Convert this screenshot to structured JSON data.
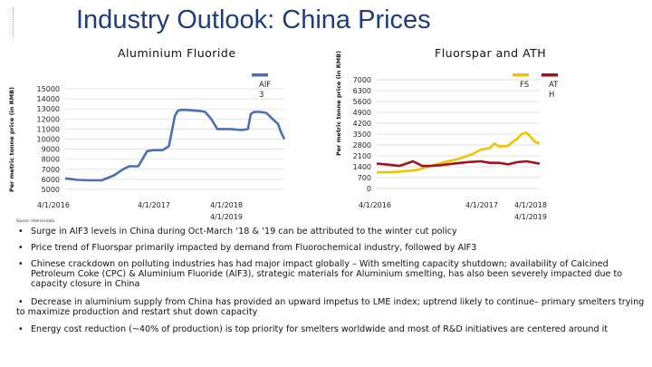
{
  "page": {
    "title": "Industry Outlook: China Prices",
    "source": "Source: Internal data"
  },
  "bullets": [
    "Surge in AlF3 levels in China during Oct-March ‘18 & ‘19 can be attributed to the winter cut policy",
    "Price trend of Fluorspar primarily impacted by demand from Fluorochemical industry, followed by AlF3",
    "Chinese crackdown on polluting industries has had major impact globally – With smelting capacity shutdown; availability of Calcined Petroleum Coke (CPC) & Aluminium Fluoride (AlF3), strategic materials for Aluminium smelting, has also been severely impacted due to capacity closure in China",
    "Decrease in aluminium supply from China has provided an upward impetus to LME index; uptrend likely to continue– primary smelters trying to maximize production and restart shut down capacity",
    "Energy cost reduction (~40% of production) is top priority for smelters worldwide and most of R&D initiatives are centered around it"
  ],
  "chart_data": [
    {
      "type": "line",
      "title": "Aluminium Fluoride",
      "ylabel": "Per metric tonne price (in RMB)",
      "xlabel": "",
      "ylim": [
        5000,
        15000
      ],
      "yticks": [
        5000,
        6000,
        7000,
        8000,
        9000,
        10000,
        11000,
        12000,
        13000,
        14000,
        15000
      ],
      "xticks": [
        "4/1/2016",
        "4/1/2017",
        "4/1/2018",
        "4/1/2019"
      ],
      "legend": "top-right",
      "grid": true,
      "series": [
        {
          "name": "AlF3",
          "color": "#4a6fb5",
          "x": [
            "2016-04-01",
            "2016-06-01",
            "2016-08-01",
            "2016-10-01",
            "2016-12-01",
            "2017-01-15",
            "2017-02-15",
            "2017-04-01",
            "2017-05-15",
            "2017-06-15",
            "2017-08-01",
            "2017-09-01",
            "2017-10-01",
            "2017-10-15",
            "2017-11-01",
            "2017-12-01",
            "2018-01-01",
            "2018-02-01",
            "2018-03-01",
            "2018-04-01",
            "2018-05-01",
            "2018-07-01",
            "2018-09-01",
            "2018-10-01",
            "2018-10-15",
            "2018-11-01",
            "2018-12-01",
            "2019-01-01",
            "2019-02-01",
            "2019-03-01",
            "2019-03-15",
            "2019-04-01"
          ],
          "y": [
            6100,
            5950,
            5900,
            5900,
            6400,
            7000,
            7300,
            7300,
            8800,
            8900,
            8900,
            9300,
            12300,
            12800,
            12900,
            12900,
            12850,
            12800,
            12700,
            12000,
            11000,
            11000,
            10900,
            11000,
            12500,
            12700,
            12700,
            12600,
            12000,
            11500,
            10700,
            10000
          ]
        }
      ]
    },
    {
      "type": "line",
      "title": "Fluorspar and ATH",
      "ylabel": "Per metric tonne price (in RMB)",
      "xlabel": "",
      "ylim": [
        0,
        7000
      ],
      "yticks": [
        0,
        700,
        1400,
        2100,
        2800,
        3500,
        4200,
        4900,
        5600,
        6300,
        7000
      ],
      "xticks": [
        "4/1/2016",
        "4/1/2017",
        "4/1/2018",
        "4/1/2019"
      ],
      "legend": "top-right",
      "grid": true,
      "series": [
        {
          "name": "FS",
          "color": "#f2c200",
          "x": [
            "2016-04-01",
            "2016-07-01",
            "2016-10-01",
            "2017-01-01",
            "2017-04-01",
            "2017-07-01",
            "2017-10-01",
            "2018-01-01",
            "2018-03-01",
            "2018-05-01",
            "2018-06-01",
            "2018-07-01",
            "2018-09-01",
            "2018-10-01",
            "2018-11-01",
            "2018-12-01",
            "2019-01-01",
            "2019-02-01",
            "2019-03-01",
            "2019-04-01"
          ],
          "y": [
            1050,
            1050,
            1100,
            1200,
            1450,
            1700,
            1900,
            2200,
            2500,
            2600,
            2900,
            2700,
            2750,
            3000,
            3200,
            3500,
            3600,
            3300,
            3000,
            2900
          ]
        },
        {
          "name": "ATH",
          "color": "#a3121e",
          "x": [
            "2016-04-01",
            "2016-06-01",
            "2016-09-01",
            "2016-12-01",
            "2017-02-01",
            "2017-04-01",
            "2017-06-01",
            "2017-09-01",
            "2017-12-01",
            "2018-03-01",
            "2018-05-01",
            "2018-07-01",
            "2018-09-01",
            "2018-11-01",
            "2019-01-01",
            "2019-03-01",
            "2019-04-01"
          ],
          "y": [
            1600,
            1550,
            1450,
            1750,
            1450,
            1450,
            1500,
            1600,
            1700,
            1750,
            1650,
            1650,
            1550,
            1700,
            1750,
            1650,
            1600
          ]
        }
      ]
    }
  ]
}
